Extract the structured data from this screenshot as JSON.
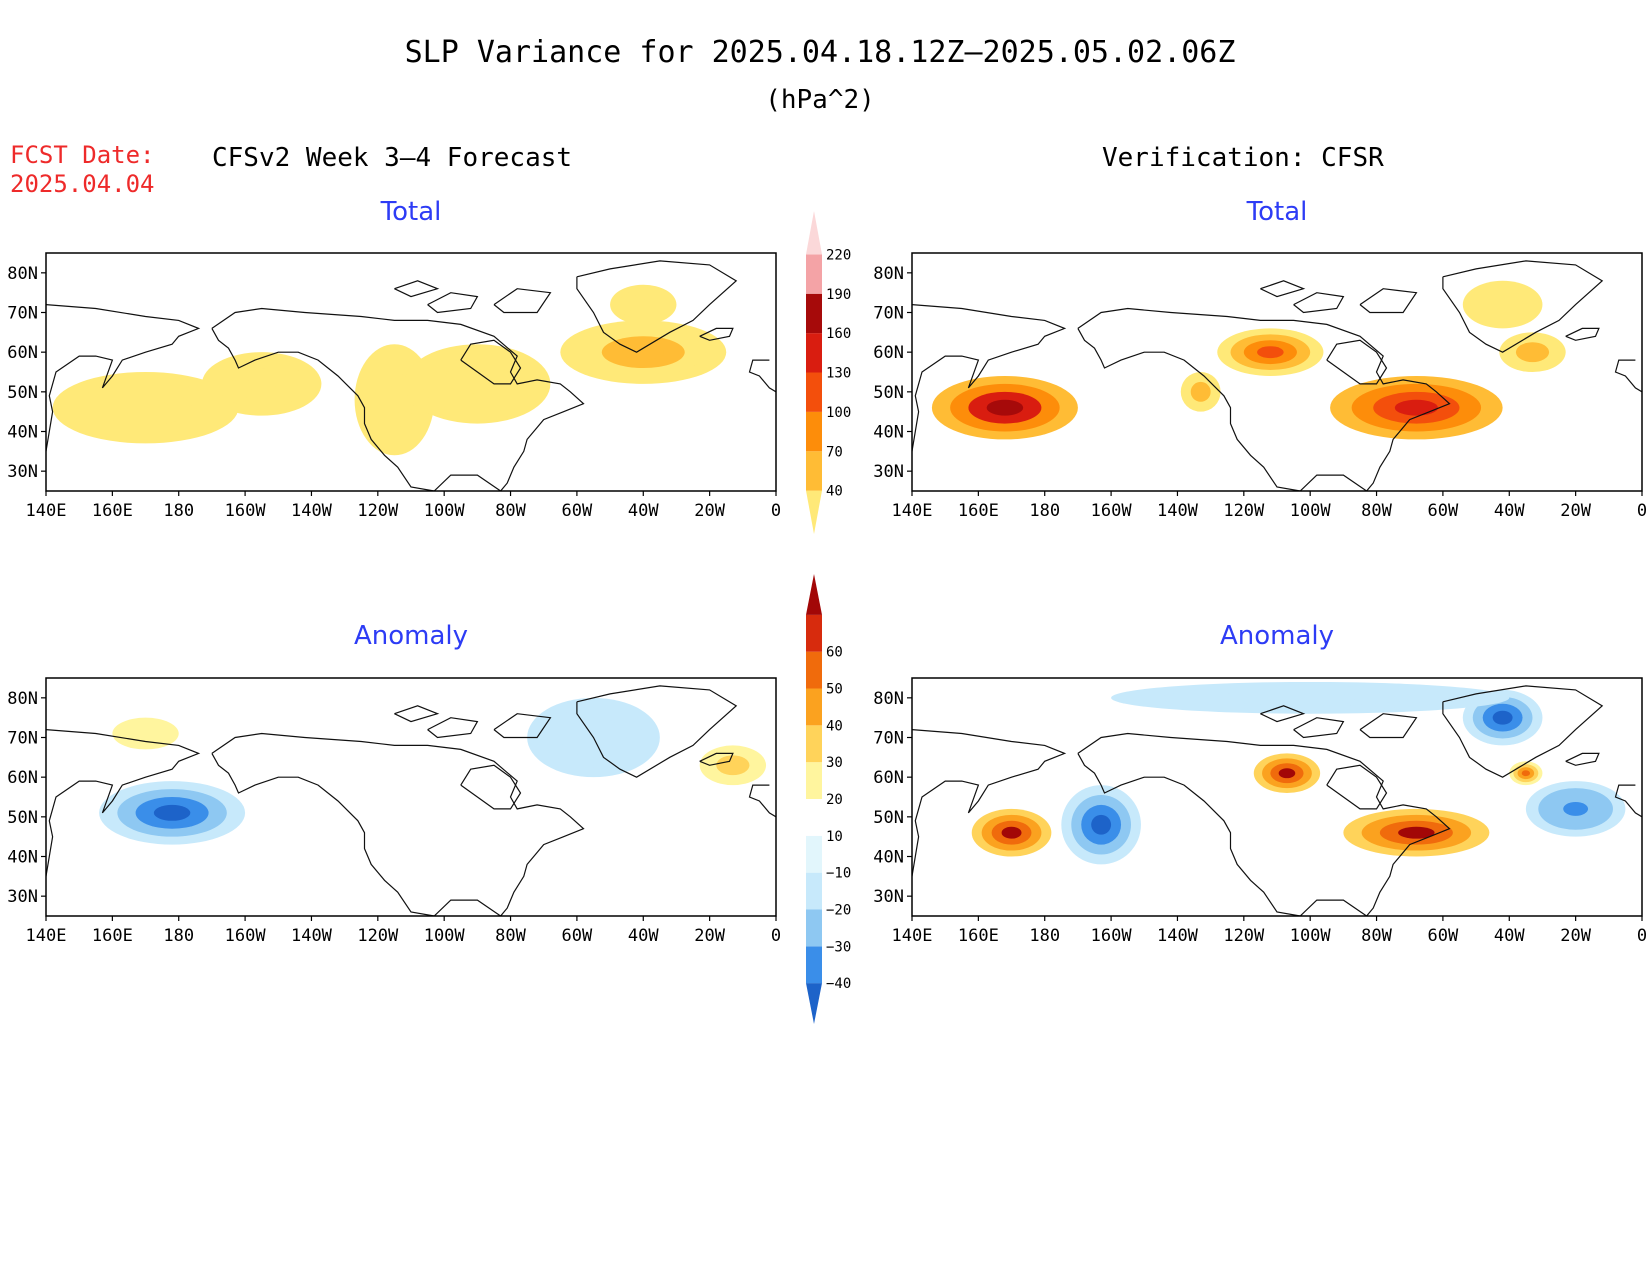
{
  "title": "SLP Variance for 2025.04.18.12Z–2025.05.02.06Z",
  "units": "(hPa^2)",
  "fcst_date_label": "FCST Date:",
  "fcst_date_value": "2025.04.04",
  "left_header": "CFSv2 Week 3–4 Forecast",
  "right_header": "Verification: CFSR",
  "chart_data": [
    {
      "type": "heatmap",
      "panel": "forecast-total",
      "title": "Total",
      "x_ticks": [
        "140E",
        "160E",
        "180",
        "160W",
        "140W",
        "120W",
        "100W",
        "80W",
        "60W",
        "40W",
        "20W",
        "0"
      ],
      "y_ticks": [
        "80N",
        "70N",
        "60N",
        "50N",
        "40N",
        "30N"
      ],
      "lon_range": [
        140,
        360
      ],
      "lat_range": [
        25,
        85
      ],
      "regions": [
        {
          "lon": 170,
          "lat": 46,
          "value": 55,
          "rlon": 28,
          "rlat": 9
        },
        {
          "lon": 205,
          "lat": 52,
          "value": 50,
          "rlon": 18,
          "rlat": 8
        },
        {
          "lon": 245,
          "lat": 48,
          "value": 45,
          "rlon": 12,
          "rlat": 14
        },
        {
          "lon": 270,
          "lat": 52,
          "value": 48,
          "rlon": 22,
          "rlat": 10
        },
        {
          "lon": 320,
          "lat": 60,
          "value": 80,
          "rlon": 25,
          "rlat": 8
        },
        {
          "lon": 320,
          "lat": 72,
          "value": 55,
          "rlon": 10,
          "rlat": 5
        }
      ]
    },
    {
      "type": "heatmap",
      "panel": "verification-total",
      "title": "Total",
      "x_ticks": [
        "140E",
        "160E",
        "180",
        "160W",
        "140W",
        "120W",
        "100W",
        "80W",
        "60W",
        "40W",
        "20W",
        "0"
      ],
      "y_ticks": [
        "80N",
        "70N",
        "60N",
        "50N",
        "40N",
        "30N"
      ],
      "lon_range": [
        140,
        360
      ],
      "lat_range": [
        25,
        85
      ],
      "regions": [
        {
          "lon": 168,
          "lat": 46,
          "value": 200,
          "rlon": 22,
          "rlat": 8
        },
        {
          "lon": 227,
          "lat": 50,
          "value": 90,
          "rlon": 6,
          "rlat": 5
        },
        {
          "lon": 248,
          "lat": 60,
          "value": 140,
          "rlon": 16,
          "rlat": 6
        },
        {
          "lon": 292,
          "lat": 46,
          "value": 170,
          "rlon": 26,
          "rlat": 8
        },
        {
          "lon": 327,
          "lat": 60,
          "value": 95,
          "rlon": 10,
          "rlat": 5
        },
        {
          "lon": 318,
          "lat": 72,
          "value": 45,
          "rlon": 12,
          "rlat": 6
        }
      ]
    },
    {
      "type": "heatmap",
      "panel": "forecast-anomaly",
      "title": "Anomaly",
      "x_ticks": [
        "140E",
        "160E",
        "180",
        "160W",
        "140W",
        "120W",
        "100W",
        "80W",
        "60W",
        "40W",
        "20W",
        "0"
      ],
      "y_ticks": [
        "80N",
        "70N",
        "60N",
        "50N",
        "40N",
        "30N"
      ],
      "lon_range": [
        140,
        360
      ],
      "lat_range": [
        25,
        85
      ],
      "regions": [
        {
          "lon": 178,
          "lat": 51,
          "value": -40,
          "rlon": 22,
          "rlat": 8
        },
        {
          "lon": 170,
          "lat": 71,
          "value": 15,
          "rlon": 10,
          "rlat": 4
        },
        {
          "lon": 347,
          "lat": 63,
          "value": 25,
          "rlon": 10,
          "rlat": 5
        },
        {
          "lon": 305,
          "lat": 70,
          "value": -15,
          "rlon": 20,
          "rlat": 10
        }
      ]
    },
    {
      "type": "heatmap",
      "panel": "verification-anomaly",
      "title": "Anomaly",
      "x_ticks": [
        "140E",
        "160E",
        "180",
        "160W",
        "140W",
        "120W",
        "100W",
        "80W",
        "60W",
        "40W",
        "20W",
        "0"
      ],
      "y_ticks": [
        "80N",
        "70N",
        "60N",
        "50N",
        "40N",
        "30N"
      ],
      "lon_range": [
        140,
        360
      ],
      "lat_range": [
        25,
        85
      ],
      "regions": [
        {
          "lon": 170,
          "lat": 46,
          "value": 60,
          "rlon": 12,
          "rlat": 6
        },
        {
          "lon": 197,
          "lat": 48,
          "value": -45,
          "rlon": 12,
          "rlat": 10
        },
        {
          "lon": 253,
          "lat": 61,
          "value": 60,
          "rlon": 10,
          "rlat": 5
        },
        {
          "lon": 292,
          "lat": 46,
          "value": 60,
          "rlon": 22,
          "rlat": 6
        },
        {
          "lon": 318,
          "lat": 75,
          "value": -40,
          "rlon": 12,
          "rlat": 7
        },
        {
          "lon": 340,
          "lat": 52,
          "value": -35,
          "rlon": 15,
          "rlat": 7
        },
        {
          "lon": 325,
          "lat": 61,
          "value": 45,
          "rlon": 5,
          "rlat": 3
        },
        {
          "lon": 260,
          "lat": 80,
          "value": -15,
          "rlon": 60,
          "rlat": 4
        }
      ]
    }
  ],
  "colorbar_total": {
    "labels": [
      "40",
      "70",
      "100",
      "130",
      "160",
      "190",
      "220"
    ],
    "colors": [
      "#ffe978",
      "#ffbc35",
      "#fd8d0a",
      "#f34f0c",
      "#d91d10",
      "#a60a0a",
      "#f4a3a6",
      "#fbd8d9"
    ]
  },
  "colorbar_anomaly": {
    "labels": [
      "−40",
      "−30",
      "−20",
      "−10",
      "10",
      "20",
      "30",
      "40",
      "50",
      "60"
    ],
    "colors": [
      "#1d63c9",
      "#3a8ee9",
      "#8ec8f2",
      "#c7e9fb",
      "#e2f6fc",
      "#ffffff",
      "#fff59e",
      "#ffd35a",
      "#fba21f",
      "#f06b0c",
      "#d72b0d",
      "#a20707"
    ]
  }
}
